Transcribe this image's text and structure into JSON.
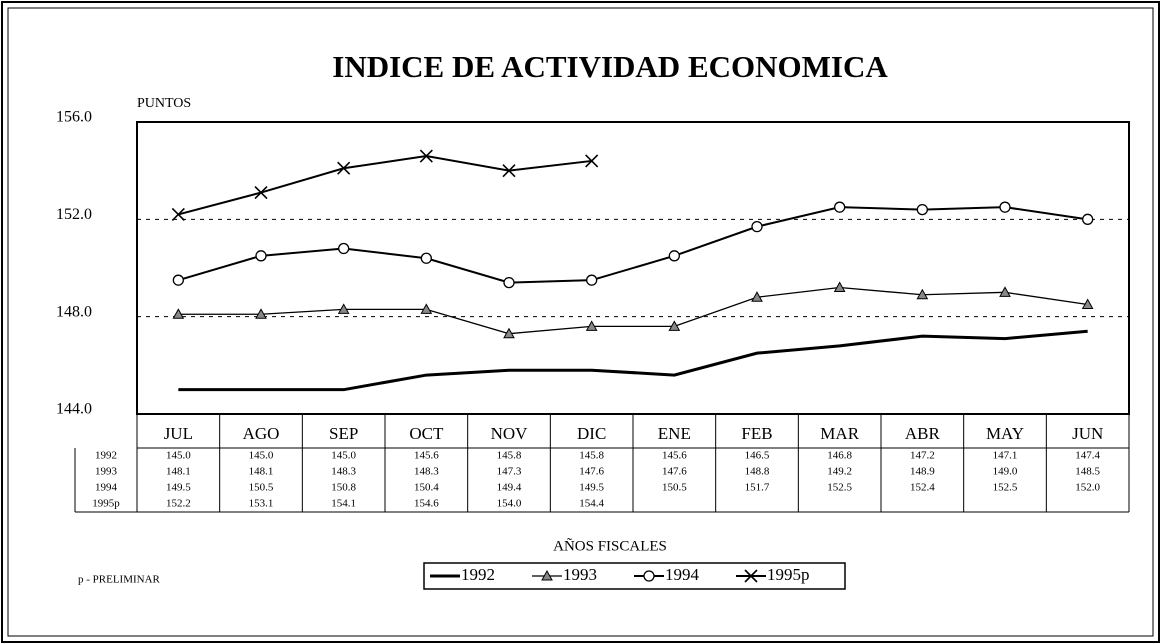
{
  "chart_data": {
    "type": "line",
    "title": "INDICE DE ACTIVIDAD ECONOMICA",
    "y_label": "PUNTOS",
    "x_label": "AÑOS FISCALES",
    "note": "p - PRELIMINAR",
    "categories": [
      "JUL",
      "AGO",
      "SEP",
      "OCT",
      "NOV",
      "DIC",
      "ENE",
      "FEB",
      "MAR",
      "ABR",
      "MAY",
      "JUN"
    ],
    "ylim": [
      144,
      156
    ],
    "yticks": [
      {
        "value": 144,
        "label": "144.0"
      },
      {
        "value": 148,
        "label": "148.0"
      },
      {
        "value": 152,
        "label": "152.0"
      },
      {
        "value": 156,
        "label": "156.0"
      }
    ],
    "grid": true,
    "series": [
      {
        "name": "1992",
        "color": "#000000",
        "marker": "none",
        "values": [
          145.0,
          145.0,
          145.0,
          145.6,
          145.8,
          145.8,
          145.6,
          146.5,
          146.8,
          147.2,
          147.1,
          147.4
        ],
        "value_labels": [
          "145.0",
          "145.0",
          "145.0",
          "145.6",
          "145.8",
          "145.8",
          "145.6",
          "146.5",
          "146.8",
          "147.2",
          "147.1",
          "147.4"
        ]
      },
      {
        "name": "1993",
        "color": "#000000",
        "marker": "triangle",
        "values": [
          148.1,
          148.1,
          148.3,
          148.3,
          147.3,
          147.6,
          147.6,
          148.8,
          149.2,
          148.9,
          149.0,
          148.5
        ],
        "value_labels": [
          "148.1",
          "148.1",
          "148.3",
          "148.3",
          "147.3",
          "147.6",
          "147.6",
          "148.8",
          "149.2",
          "148.9",
          "149.0",
          "148.5"
        ]
      },
      {
        "name": "1994",
        "color": "#000000",
        "marker": "circle",
        "values": [
          149.5,
          150.5,
          150.8,
          150.4,
          149.4,
          149.5,
          150.5,
          151.7,
          152.5,
          152.4,
          152.5,
          152.0
        ],
        "value_labels": [
          "149.5",
          "150.5",
          "150.8",
          "150.4",
          "149.4",
          "149.5",
          "150.5",
          "151.7",
          "152.5",
          "152.4",
          "152.5",
          "152.0"
        ]
      },
      {
        "name": "1995p",
        "color": "#000000",
        "marker": "x",
        "values": [
          152.2,
          153.1,
          154.1,
          154.6,
          154.0,
          154.4,
          null,
          null,
          null,
          null,
          null,
          null
        ],
        "value_labels": [
          "152.2",
          "153.1",
          "154.1",
          "154.6",
          "154.0",
          "154.4",
          null,
          null,
          null,
          null,
          null,
          null
        ]
      }
    ]
  }
}
